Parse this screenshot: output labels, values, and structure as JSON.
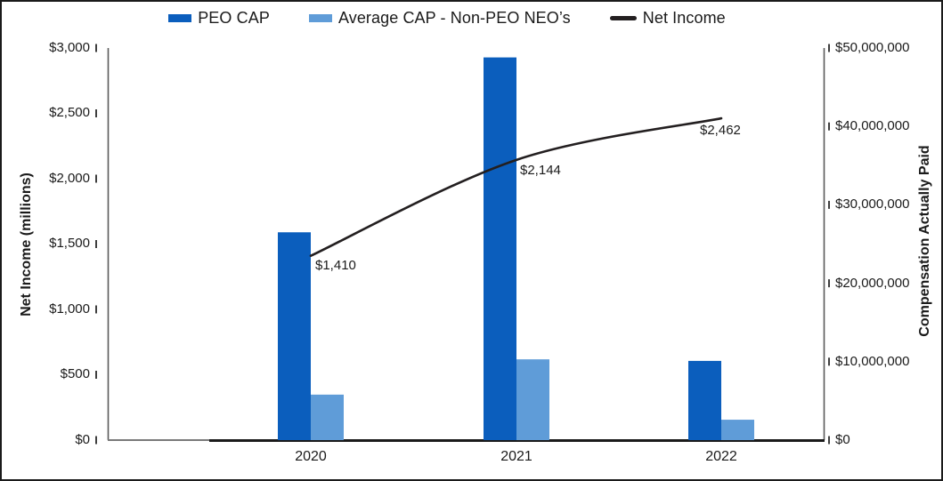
{
  "legend": {
    "items": [
      {
        "label": "PEO CAP",
        "color": "#0b5ebd",
        "type": "bar"
      },
      {
        "label": "Average CAP - Non-PEO NEO’s",
        "color": "#5f9cd8",
        "type": "bar"
      },
      {
        "label": "Net Income",
        "color": "#231f20",
        "type": "line"
      }
    ]
  },
  "chart_data": {
    "type": "bar",
    "subtype": "combo-bar-line-dual-axis",
    "categories": [
      "2020",
      "2021",
      "2022"
    ],
    "series": [
      {
        "name": "PEO CAP",
        "type": "bar",
        "axis": "right",
        "color": "#0b5ebd",
        "values": [
          26500000,
          48800000,
          10100000
        ]
      },
      {
        "name": "Average CAP - Non-PEO NEO’s",
        "type": "bar",
        "axis": "right",
        "color": "#5f9cd8",
        "values": [
          5800000,
          10300000,
          2600000
        ]
      },
      {
        "name": "Net Income",
        "type": "line",
        "axis": "left",
        "color": "#231f20",
        "values": [
          1410,
          2144,
          2462
        ],
        "point_labels": [
          "$1,410",
          "$2,144",
          "$2,462"
        ]
      }
    ],
    "left_axis": {
      "title": "Net Income (millions)",
      "min": 0,
      "max": 3000,
      "tick_step": 500,
      "ticks": [
        "$3,000",
        "$2,500",
        "$2,000",
        "$1,500",
        "$1,000",
        "$500",
        "$0"
      ]
    },
    "right_axis": {
      "title": "Compensation Actually Paid",
      "min": 0,
      "max": 50000000,
      "tick_step": 10000000,
      "ticks": [
        "$50,000,000",
        "$40,000,000",
        "$30,000,000",
        "$20,000,000",
        "$10,000,000",
        "$0"
      ]
    },
    "legend_position": "top",
    "grid": false
  }
}
